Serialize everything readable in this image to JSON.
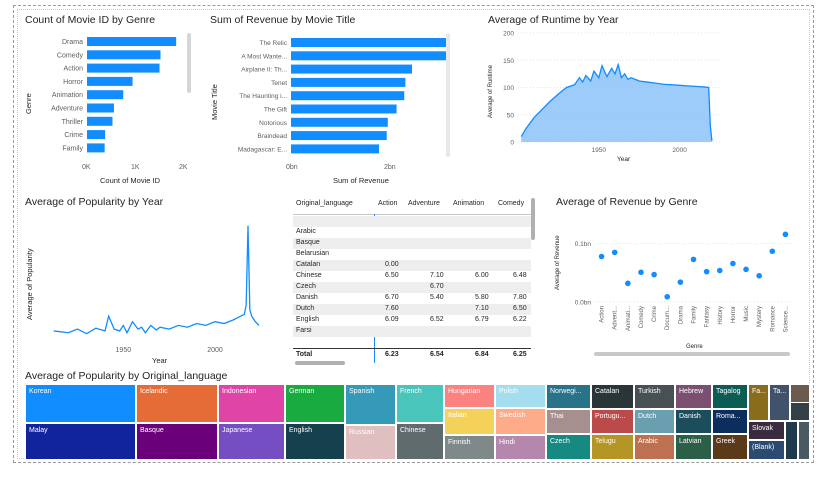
{
  "colors": {
    "accent": "#118DFF",
    "area_fill": "#92C5F9"
  },
  "genre_count": {
    "title": "Count of Movie ID by Genre",
    "ylabel": "Genre",
    "xlabel": "Count of Movie ID",
    "xticks": [
      "0K",
      "1K",
      "2K"
    ],
    "chart_data": {
      "type": "bar",
      "orientation": "horizontal",
      "categories": [
        "Drama",
        "Comedy",
        "Action",
        "Horror",
        "Animation",
        "Adventure",
        "Thriller",
        "Crime",
        "Family"
      ],
      "values": [
        1820,
        1500,
        1480,
        930,
        740,
        550,
        520,
        370,
        360
      ],
      "xlim": [
        0,
        2000
      ]
    }
  },
  "revenue_title": {
    "title": "Sum of Revenue by Movie Title",
    "ylabel": "Movie Title",
    "xlabel": "Sum of Revenue",
    "xticks": [
      "0bn",
      "2bn"
    ],
    "chart_data": {
      "type": "bar",
      "orientation": "horizontal",
      "categories": [
        "The Relic",
        "A Most Wante...",
        "Airplane II: Th...",
        "Tenet",
        "The Haunting i...",
        "The Gift",
        "Notorious",
        "Braindead",
        "Madagascar: E..."
      ],
      "values": [
        2.87,
        2.82,
        2.2,
        2.08,
        2.06,
        1.92,
        1.76,
        1.74,
        1.6
      ],
      "xlim": [
        0,
        3
      ]
    }
  },
  "runtime_year": {
    "title": "Average of Runtime by Year",
    "ylabel": "Average of Runtime",
    "xlabel": "Year",
    "yticks": [
      "0",
      "50",
      "100",
      "150",
      "200"
    ],
    "xticks": [
      "1950",
      "2000"
    ],
    "chart_data": {
      "type": "area",
      "ylim": [
        0,
        200
      ],
      "xlim": [
        1900,
        2025
      ],
      "x": [
        1902,
        1905,
        1910,
        1915,
        1920,
        1925,
        1930,
        1935,
        1938,
        1940,
        1942,
        1945,
        1947,
        1950,
        1952,
        1955,
        1958,
        1960,
        1962,
        1964,
        1966,
        1968,
        1970,
        1975,
        1980,
        1985,
        1990,
        1995,
        2000,
        2005,
        2010,
        2015,
        2018,
        2019,
        2020
      ],
      "y": [
        10,
        25,
        45,
        60,
        75,
        88,
        100,
        105,
        118,
        110,
        122,
        112,
        130,
        118,
        140,
        120,
        135,
        125,
        142,
        118,
        125,
        115,
        118,
        112,
        110,
        108,
        106,
        105,
        104,
        103,
        102,
        101,
        100,
        30,
        2
      ]
    }
  },
  "popularity_year": {
    "title": "Average of Popularity by Year",
    "ylabel": "Average of Popularity",
    "xlabel": "Year",
    "xticks": [
      "1950",
      "2000"
    ],
    "chart_data": {
      "type": "line",
      "xlim": [
        1910,
        2030
      ],
      "ylim": [
        0,
        130
      ],
      "x": [
        1912,
        1920,
        1925,
        1930,
        1935,
        1940,
        1942,
        1945,
        1948,
        1950,
        1952,
        1955,
        1958,
        1960,
        1962,
        1965,
        1968,
        1970,
        1975,
        1980,
        1985,
        1990,
        1995,
        2000,
        2005,
        2010,
        2014,
        2016,
        2017,
        2018,
        2019,
        2020,
        2022,
        2024
      ],
      "y": [
        12,
        10,
        14,
        9,
        15,
        12,
        28,
        14,
        12,
        18,
        10,
        22,
        14,
        16,
        10,
        18,
        13,
        16,
        14,
        18,
        16,
        20,
        18,
        22,
        20,
        24,
        28,
        30,
        40,
        126,
        35,
        28,
        22,
        18
      ]
    }
  },
  "table": {
    "headers": [
      "Original_language",
      "Action",
      "Adventure",
      "Animation",
      "Comedy"
    ],
    "rows": [
      [
        "",
        "",
        "",
        "",
        ""
      ],
      [
        "Arabic",
        "",
        "",
        "",
        ""
      ],
      [
        "Basque",
        "",
        "",
        "",
        ""
      ],
      [
        "Belarusian",
        "",
        "",
        "",
        ""
      ],
      [
        "Catalan",
        "0.00",
        "",
        "",
        ""
      ],
      [
        "Chinese",
        "6.50",
        "7.10",
        "6.00",
        "6.48"
      ],
      [
        "Czech",
        "",
        "6.70",
        "",
        ""
      ],
      [
        "Danish",
        "6.70",
        "5.40",
        "5.80",
        "7.80"
      ],
      [
        "Dutch",
        "7.60",
        "",
        "7.10",
        "6.50"
      ],
      [
        "English",
        "6.09",
        "6.52",
        "6.79",
        "6.22"
      ],
      [
        "Farsi",
        "",
        "",
        "",
        ""
      ]
    ],
    "total": [
      "Total",
      "6.23",
      "6.54",
      "6.84",
      "6.25"
    ]
  },
  "revenue_genre": {
    "title": "Average of Revenue by Genre",
    "ylabel": "Average of Revenue",
    "xlabel": "Genre",
    "yticks": [
      "0.0bn",
      "0.1bn"
    ],
    "chart_data": {
      "type": "scatter",
      "ylim": [
        0,
        0.12
      ],
      "categories": [
        "Action",
        "Advent...",
        "Animati...",
        "Comedy",
        "Crime",
        "Docum...",
        "Drama",
        "Family",
        "Fantasy",
        "History",
        "Horror",
        "Music",
        "Mystery",
        "Romance",
        "Science..."
      ],
      "values": [
        0.078,
        0.085,
        0.032,
        0.051,
        0.047,
        0.009,
        0.034,
        0.073,
        0.052,
        0.054,
        0.066,
        0.056,
        0.045,
        0.087,
        0.116
      ]
    }
  },
  "treemap": {
    "title": "Average of Popularity by Original_language",
    "cells": [
      {
        "label": "Korean",
        "color": "#118DFF"
      },
      {
        "label": "Malay",
        "color": "#12239E"
      },
      {
        "label": "Icelandic",
        "color": "#E66C37"
      },
      {
        "label": "Basque",
        "color": "#6B007B"
      },
      {
        "label": "Indonesian",
        "color": "#E044A7"
      },
      {
        "label": "Japanese",
        "color": "#744EC2"
      },
      {
        "label": "German",
        "color": "#1AAB40"
      },
      {
        "label": "English",
        "color": "#15414E"
      },
      {
        "label": "Spanish",
        "color": "#3599B8"
      },
      {
        "label": "Russian",
        "color": "#DFBFBF"
      },
      {
        "label": "French",
        "color": "#4AC5BB"
      },
      {
        "label": "Chinese",
        "color": "#5F6B6D"
      },
      {
        "label": "Hungarian",
        "color": "#FB8281"
      },
      {
        "label": "Italian",
        "color": "#F4D25A"
      },
      {
        "label": "Finnish",
        "color": "#7F898A"
      },
      {
        "label": "Polish",
        "color": "#A4DDEE"
      },
      {
        "label": "Swedish",
        "color": "#FDAB89"
      },
      {
        "label": "Hindi",
        "color": "#B687AC"
      },
      {
        "label": "Norwegi...",
        "color": "#28738A"
      },
      {
        "label": "Thai",
        "color": "#A78F8F"
      },
      {
        "label": "Czech",
        "color": "#168980"
      },
      {
        "label": "Catalan",
        "color": "#293537"
      },
      {
        "label": "Portugu...",
        "color": "#BB4A4A"
      },
      {
        "label": "Telugu",
        "color": "#B59525"
      },
      {
        "label": "Turkish",
        "color": "#475052"
      },
      {
        "label": "Dutch",
        "color": "#6A9FB0"
      },
      {
        "label": "Arabic",
        "color": "#BD7150"
      },
      {
        "label": "Hebrew",
        "color": "#7B4F71"
      },
      {
        "label": "Danish",
        "color": "#1B4D5C"
      },
      {
        "label": "Latvian",
        "color": "#2C5F48"
      },
      {
        "label": "Tagalog",
        "color": "#0A5C54"
      },
      {
        "label": "Roma...",
        "color": "#0B2E5C"
      },
      {
        "label": "Greek",
        "color": "#5B3A1A"
      },
      {
        "label": "Fa...",
        "color": "#8A6D1C"
      },
      {
        "label": "Slovak",
        "color": "#3B2B3F"
      },
      {
        "label": "(Blank)",
        "color": "#2A4A72"
      },
      {
        "label": "Ta...",
        "color": "#41536A"
      },
      {
        "label": "",
        "color": "#6C5A4E"
      },
      {
        "label": "",
        "color": "#1F3A4A"
      },
      {
        "label": "",
        "color": "#4A5A60"
      },
      {
        "label": "",
        "color": "#323F44"
      }
    ]
  }
}
